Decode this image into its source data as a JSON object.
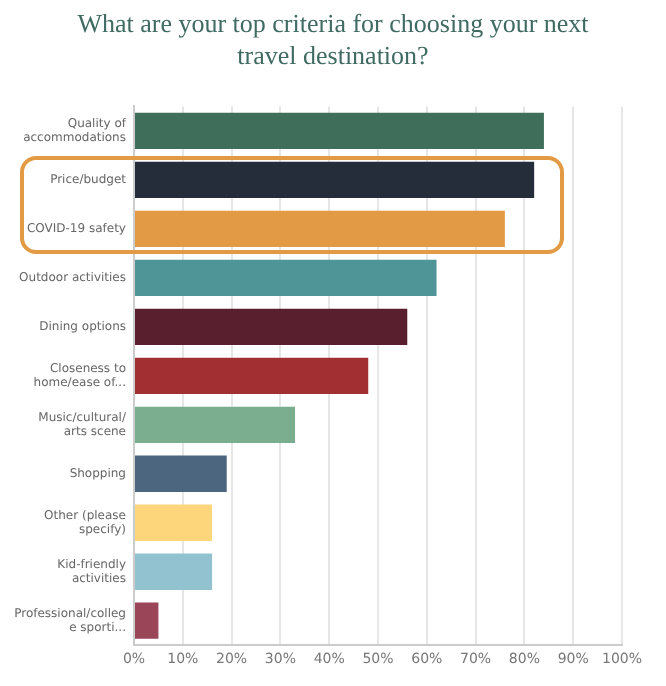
{
  "chart_data": {
    "type": "bar",
    "orientation": "horizontal",
    "title": "What are your top criteria for choosing your next travel destination?",
    "categories": [
      "Quality of accommodations",
      "Price/budget",
      "COVID-19 safety",
      "Outdoor activities",
      "Dining options",
      "Closeness to home/ease of...",
      "Music/cultural/ arts scene",
      "Shopping",
      "Other (please specify)",
      "Kid-friendly activities",
      "Professional/college sporti..."
    ],
    "values": [
      84,
      82,
      76,
      62,
      56,
      48,
      33,
      19,
      16,
      16,
      5
    ],
    "colors": [
      "#3f6e5a",
      "#262d3a",
      "#e39a45",
      "#4f9597",
      "#5a1f2e",
      "#a23033",
      "#7aae8e",
      "#4d6680",
      "#fdd57a",
      "#92c1cf",
      "#9b4558"
    ],
    "xlim": [
      0,
      100
    ],
    "xticks": [
      {
        "value": 0,
        "label": "0%"
      },
      {
        "value": 10,
        "label": "10%"
      },
      {
        "value": 20,
        "label": "20%"
      },
      {
        "value": 30,
        "label": "30%"
      },
      {
        "value": 40,
        "label": "40%"
      },
      {
        "value": 50,
        "label": "50%"
      },
      {
        "value": 60,
        "label": "60%"
      },
      {
        "value": 70,
        "label": "70%"
      },
      {
        "value": 80,
        "label": "80%"
      },
      {
        "value": 90,
        "label": "90%"
      },
      {
        "value": 100,
        "label": "100%"
      }
    ],
    "grid": "x",
    "legend": false
  }
}
